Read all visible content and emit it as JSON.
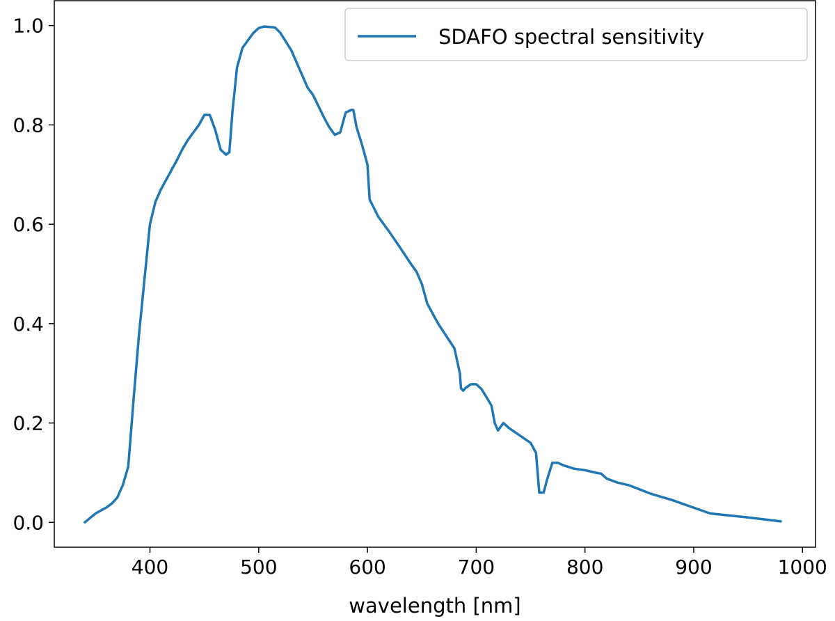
{
  "chart_data": {
    "type": "line",
    "title": "",
    "xlabel": "wavelength [nm]",
    "ylabel": "",
    "xlim": [
      312,
      1012
    ],
    "ylim": [
      -0.05,
      1.05
    ],
    "xticks": [
      400,
      500,
      600,
      700,
      800,
      900,
      1000
    ],
    "yticks": [
      0.0,
      0.2,
      0.4,
      0.6,
      0.8,
      1.0
    ],
    "xtick_labels": [
      "400",
      "500",
      "600",
      "700",
      "800",
      "900",
      "1000"
    ],
    "ytick_labels": [
      "0.0",
      "0.2",
      "0.4",
      "0.6",
      "0.8",
      "1.0"
    ],
    "grid": false,
    "legend": {
      "placement": "top-right"
    },
    "series": [
      {
        "name": "SDAFO spectral sensitivity",
        "color": "#1f77b4",
        "x": [
          340,
          350,
          360,
          365,
          370,
          375,
          380,
          385,
          390,
          395,
          400,
          405,
          410,
          415,
          420,
          425,
          430,
          435,
          440,
          445,
          450,
          455,
          460,
          465,
          470,
          473,
          476,
          480,
          485,
          490,
          495,
          500,
          505,
          510,
          515,
          520,
          530,
          540,
          545,
          550,
          560,
          565,
          570,
          575,
          580,
          585,
          587,
          590,
          595,
          600,
          602,
          610,
          620,
          630,
          640,
          645,
          650,
          655,
          665,
          680,
          685,
          686,
          688,
          690,
          695,
          700,
          705,
          710,
          714,
          717,
          720,
          725,
          730,
          750,
          755,
          758,
          762,
          765,
          770,
          775,
          780,
          790,
          800,
          810,
          815,
          820,
          830,
          840,
          860,
          880,
          915,
          950,
          980
        ],
        "y": [
          0.0,
          0.018,
          0.03,
          0.038,
          0.05,
          0.075,
          0.112,
          0.25,
          0.38,
          0.49,
          0.6,
          0.645,
          0.67,
          0.69,
          0.71,
          0.73,
          0.752,
          0.77,
          0.785,
          0.8,
          0.82,
          0.82,
          0.79,
          0.75,
          0.74,
          0.745,
          0.83,
          0.915,
          0.955,
          0.97,
          0.985,
          0.995,
          0.998,
          0.997,
          0.996,
          0.985,
          0.95,
          0.9,
          0.875,
          0.86,
          0.815,
          0.795,
          0.78,
          0.785,
          0.825,
          0.83,
          0.83,
          0.795,
          0.76,
          0.72,
          0.65,
          0.615,
          0.585,
          0.553,
          0.52,
          0.505,
          0.48,
          0.44,
          0.4,
          0.35,
          0.3,
          0.27,
          0.265,
          0.27,
          0.278,
          0.278,
          0.268,
          0.25,
          0.235,
          0.2,
          0.185,
          0.2,
          0.19,
          0.16,
          0.14,
          0.06,
          0.06,
          0.085,
          0.12,
          0.12,
          0.115,
          0.108,
          0.105,
          0.1,
          0.098,
          0.088,
          0.08,
          0.075,
          0.058,
          0.045,
          0.018,
          0.01,
          0.002
        ]
      }
    ]
  }
}
